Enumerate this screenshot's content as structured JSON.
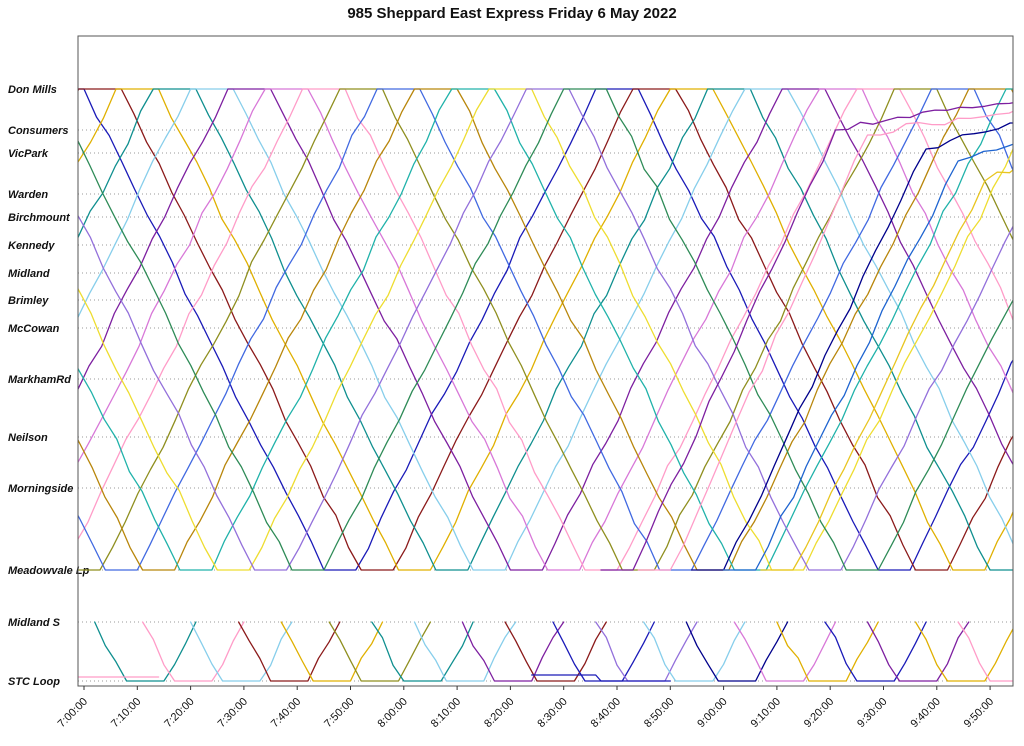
{
  "title": "985 Sheppard East Express Friday 6 May 2022",
  "chart_data": {
    "type": "line",
    "title": "985 Sheppard East Express Friday 6 May 2022",
    "subtitle": "",
    "legend": "none",
    "grid": "dotted-horizontal",
    "x_axis": {
      "unit": "time of day",
      "tick_minutes": [
        0,
        10,
        20,
        30,
        40,
        50,
        60,
        70,
        80,
        90,
        100,
        110,
        120,
        130,
        140,
        150,
        160,
        170
      ],
      "tick_labels": [
        "7:00:00",
        "7:10:00",
        "7:20:00",
        "7:30:00",
        "7:40:00",
        "7:50:00",
        "8:00:00",
        "8:10:00",
        "8:20:00",
        "8:30:00",
        "8:40:00",
        "8:50:00",
        "9:00:00",
        "9:10:00",
        "9:20:00",
        "9:30:00",
        "9:40:00",
        "9:50:00"
      ]
    },
    "stations": [
      {
        "label": "Don Mills",
        "dist": 0
      },
      {
        "label": "Consumers",
        "dist": 41
      },
      {
        "label": "VicPark",
        "dist": 64
      },
      {
        "label": "Warden",
        "dist": 105
      },
      {
        "label": "Birchmount",
        "dist": 128
      },
      {
        "label": "Kennedy",
        "dist": 156
      },
      {
        "label": "Midland",
        "dist": 184
      },
      {
        "label": "Brimley",
        "dist": 211
      },
      {
        "label": "McCowan",
        "dist": 239
      },
      {
        "label": "MarkhamRd",
        "dist": 290
      },
      {
        "label": "Neilson",
        "dist": 348
      },
      {
        "label": "Morningside",
        "dist": 399
      },
      {
        "label": "Meadowvale Lp",
        "dist": 481
      },
      {
        "label": "Midland S",
        "dist": 533
      },
      {
        "label": "STC Loop",
        "dist": 592
      }
    ],
    "trips": [
      {
        "color": "#1a1ab8",
        "points": [
          [
            -104,
            0
          ],
          [
            -59,
            481
          ],
          [
            -53,
            481
          ],
          [
            -8,
            0
          ],
          [
            0,
            0
          ],
          [
            45,
            481
          ],
          [
            51,
            481
          ],
          [
            96,
            0
          ],
          [
            104,
            0
          ],
          [
            149,
            481
          ],
          [
            155,
            481
          ],
          [
            200,
            0
          ]
        ]
      },
      {
        "color": "#8b1a1a",
        "points": [
          [
            -97,
            0
          ],
          [
            -52,
            481
          ],
          [
            -46,
            481
          ],
          [
            -1,
            0
          ],
          [
            7,
            0
          ],
          [
            52,
            481
          ],
          [
            58,
            481
          ],
          [
            103,
            0
          ],
          [
            111,
            0
          ],
          [
            156,
            481
          ],
          [
            162,
            481
          ],
          [
            207,
            0
          ]
        ]
      },
      {
        "color": "#e0b000",
        "points": [
          [
            -90,
            0
          ],
          [
            -45,
            481
          ],
          [
            -39,
            481
          ],
          [
            6,
            0
          ],
          [
            14,
            0
          ],
          [
            59,
            481
          ],
          [
            65,
            481
          ],
          [
            110,
            0
          ],
          [
            118,
            0
          ],
          [
            163,
            481
          ],
          [
            169,
            481
          ],
          [
            214,
            0
          ]
        ]
      },
      {
        "color": "#0f8f8f",
        "points": [
          [
            -83,
            0
          ],
          [
            -38,
            481
          ],
          [
            -32,
            481
          ],
          [
            13,
            0
          ],
          [
            21,
            0
          ],
          [
            66,
            481
          ],
          [
            72,
            481
          ],
          [
            117,
            0
          ],
          [
            125,
            0
          ],
          [
            170,
            481
          ],
          [
            176,
            481
          ],
          [
            221,
            0
          ]
        ]
      },
      {
        "color": "#87ceeb",
        "points": [
          [
            -76,
            0
          ],
          [
            -31,
            481
          ],
          [
            -25,
            481
          ],
          [
            20,
            0
          ],
          [
            28,
            0
          ],
          [
            73,
            481
          ],
          [
            79,
            481
          ],
          [
            124,
            0
          ],
          [
            132,
            0
          ],
          [
            177,
            481
          ]
        ]
      },
      {
        "color": "#7d1fa0",
        "points": [
          [
            -69,
            0
          ],
          [
            -24,
            481
          ],
          [
            -18,
            481
          ],
          [
            27,
            0
          ],
          [
            35,
            0
          ],
          [
            80,
            481
          ],
          [
            86,
            481
          ],
          [
            131,
            0
          ],
          [
            139,
            0
          ],
          [
            184,
            481
          ]
        ]
      },
      {
        "color": "#d878d8",
        "points": [
          [
            -62,
            0
          ],
          [
            -17,
            481
          ],
          [
            -11,
            481
          ],
          [
            34,
            0
          ],
          [
            42,
            0
          ],
          [
            87,
            481
          ],
          [
            93,
            481
          ],
          [
            138,
            0
          ],
          [
            146,
            0
          ],
          [
            191,
            481
          ]
        ]
      },
      {
        "color": "#ff9cc8",
        "points": [
          [
            -55,
            0
          ],
          [
            -10,
            481
          ],
          [
            -4,
            481
          ],
          [
            41,
            0
          ],
          [
            49,
            0
          ],
          [
            94,
            481
          ],
          [
            100,
            481
          ],
          [
            145,
            0
          ],
          [
            153,
            0
          ],
          [
            198,
            481
          ]
        ]
      },
      {
        "color": "#8f8f1f",
        "points": [
          [
            -48,
            0
          ],
          [
            -3,
            481
          ],
          [
            3,
            481
          ],
          [
            48,
            0
          ],
          [
            56,
            0
          ],
          [
            101,
            481
          ],
          [
            107,
            481
          ],
          [
            152,
            0
          ],
          [
            160,
            0
          ],
          [
            205,
            481
          ]
        ]
      },
      {
        "color": "#4169e1",
        "points": [
          [
            -41,
            0
          ],
          [
            4,
            481
          ],
          [
            10,
            481
          ],
          [
            55,
            0
          ],
          [
            63,
            0
          ],
          [
            108,
            481
          ],
          [
            114,
            481
          ],
          [
            159,
            0
          ],
          [
            167,
            0
          ],
          [
            212,
            481
          ]
        ]
      },
      {
        "color": "#b8860b",
        "points": [
          [
            -34,
            0
          ],
          [
            11,
            481
          ],
          [
            17,
            481
          ],
          [
            62,
            0
          ],
          [
            70,
            0
          ],
          [
            115,
            481
          ],
          [
            121,
            481
          ],
          [
            166,
            0
          ],
          [
            174,
            0
          ],
          [
            219,
            481
          ]
        ]
      },
      {
        "color": "#20b2aa",
        "points": [
          [
            -27,
            0
          ],
          [
            18,
            481
          ],
          [
            24,
            481
          ],
          [
            69,
            0
          ],
          [
            77,
            0
          ],
          [
            122,
            481
          ],
          [
            128,
            481
          ],
          [
            173,
            0
          ],
          [
            181,
            0
          ]
        ]
      },
      {
        "color": "#eedd30",
        "points": [
          [
            -20,
            0
          ],
          [
            25,
            481
          ],
          [
            31,
            481
          ],
          [
            76,
            0
          ],
          [
            84,
            0
          ],
          [
            129,
            481
          ],
          [
            135,
            481
          ],
          [
            180,
            0
          ]
        ]
      },
      {
        "color": "#9370db",
        "points": [
          [
            -13,
            0
          ],
          [
            32,
            481
          ],
          [
            38,
            481
          ],
          [
            83,
            0
          ],
          [
            91,
            0
          ],
          [
            136,
            481
          ],
          [
            142,
            481
          ],
          [
            187,
            0
          ]
        ]
      },
      {
        "color": "#2e8b57",
        "points": [
          [
            -6,
            0
          ],
          [
            39,
            481
          ],
          [
            45,
            481
          ],
          [
            90,
            0
          ],
          [
            98,
            0
          ],
          [
            143,
            481
          ],
          [
            149,
            481
          ],
          [
            194,
            0
          ]
        ]
      },
      {
        "color": "#00008b",
        "points": [
          [
            114,
            481
          ],
          [
            120,
            481
          ],
          [
            158,
            60
          ],
          [
            176,
            34
          ]
        ]
      },
      {
        "color": "#1e64d0",
        "points": [
          [
            120,
            481
          ],
          [
            126,
            481
          ],
          [
            164,
            72
          ],
          [
            176,
            52
          ]
        ]
      },
      {
        "color": "#e8c520",
        "points": [
          [
            127,
            481
          ],
          [
            133,
            481
          ],
          [
            169,
            92
          ],
          [
            176,
            74
          ]
        ]
      },
      {
        "color": "#ff9cc8",
        "points": [
          [
            104,
            481
          ],
          [
            110,
            481
          ],
          [
            147,
            46
          ],
          [
            176,
            18
          ]
        ]
      },
      {
        "color": "#7d1fa0",
        "points": [
          [
            97,
            481
          ],
          [
            103,
            481
          ],
          [
            141,
            41
          ],
          [
            176,
            12
          ]
        ]
      },
      {
        "color": "#0f8f8f",
        "points": [
          [
            2,
            533
          ],
          [
            8,
            592
          ],
          [
            15,
            592
          ],
          [
            21,
            533
          ]
        ]
      },
      {
        "color": "#ff9cc8",
        "points": [
          [
            11,
            533
          ],
          [
            17,
            592
          ],
          [
            24,
            592
          ],
          [
            30,
            533
          ]
        ]
      },
      {
        "color": "#87ceeb",
        "points": [
          [
            20,
            533
          ],
          [
            26,
            592
          ],
          [
            33,
            592
          ],
          [
            39,
            533
          ]
        ]
      },
      {
        "color": "#8b1a1a",
        "points": [
          [
            29,
            533
          ],
          [
            35,
            592
          ],
          [
            42,
            592
          ],
          [
            48,
            533
          ]
        ]
      },
      {
        "color": "#e0b000",
        "points": [
          [
            37,
            533
          ],
          [
            43,
            592
          ],
          [
            50,
            592
          ],
          [
            56,
            533
          ]
        ]
      },
      {
        "color": "#8f8f1f",
        "points": [
          [
            46,
            533
          ],
          [
            52,
            592
          ],
          [
            59,
            592
          ],
          [
            65,
            533
          ]
        ]
      },
      {
        "color": "#0f8f8f",
        "points": [
          [
            54,
            533
          ],
          [
            60,
            592
          ],
          [
            67,
            592
          ],
          [
            73,
            533
          ]
        ]
      },
      {
        "color": "#87ceeb",
        "points": [
          [
            62,
            533
          ],
          [
            68,
            592
          ],
          [
            75,
            592
          ],
          [
            81,
            533
          ]
        ]
      },
      {
        "color": "#7d1fa0",
        "points": [
          [
            71,
            533
          ],
          [
            77,
            592
          ],
          [
            84,
            592
          ],
          [
            90,
            533
          ]
        ]
      },
      {
        "color": "#8b1a1a",
        "points": [
          [
            79,
            533
          ],
          [
            85,
            592
          ],
          [
            92,
            592
          ],
          [
            98,
            533
          ]
        ]
      },
      {
        "color": "#1a1ab8",
        "points": [
          [
            88,
            533
          ],
          [
            94,
            592
          ],
          [
            101,
            592
          ],
          [
            107,
            533
          ]
        ]
      },
      {
        "color": "#9370db",
        "points": [
          [
            96,
            533
          ],
          [
            102,
            592
          ],
          [
            109,
            592
          ],
          [
            115,
            533
          ]
        ]
      },
      {
        "color": "#87ceeb",
        "points": [
          [
            105,
            533
          ],
          [
            111,
            592
          ],
          [
            118,
            592
          ],
          [
            124,
            533
          ]
        ]
      },
      {
        "color": "#00008b",
        "points": [
          [
            113,
            533
          ],
          [
            119,
            592
          ],
          [
            126,
            592
          ],
          [
            132,
            533
          ]
        ]
      },
      {
        "color": "#d878d8",
        "points": [
          [
            122,
            533
          ],
          [
            128,
            592
          ],
          [
            135,
            592
          ],
          [
            141,
            533
          ]
        ]
      },
      {
        "color": "#e0b000",
        "points": [
          [
            130,
            533
          ],
          [
            136,
            592
          ],
          [
            143,
            592
          ],
          [
            149,
            533
          ]
        ]
      },
      {
        "color": "#1a1ab8",
        "points": [
          [
            139,
            533
          ],
          [
            145,
            592
          ],
          [
            152,
            592
          ],
          [
            158,
            533
          ]
        ]
      },
      {
        "color": "#7d1fa0",
        "points": [
          [
            147,
            533
          ],
          [
            153,
            592
          ],
          [
            160,
            592
          ],
          [
            166,
            533
          ]
        ]
      },
      {
        "color": "#e0b000",
        "points": [
          [
            156,
            533
          ],
          [
            162,
            592
          ],
          [
            169,
            592
          ],
          [
            175,
            533
          ]
        ]
      },
      {
        "color": "#ff9cc8",
        "points": [
          [
            164,
            533
          ],
          [
            170,
            592
          ],
          [
            177,
            592
          ],
          [
            183,
            533
          ]
        ]
      },
      {
        "color": "#ff9cc8",
        "points": [
          [
            -2,
            588
          ],
          [
            14,
            588
          ]
        ]
      },
      {
        "color": "#1a1ab8",
        "points": [
          [
            84,
            586
          ],
          [
            96,
            586
          ],
          [
            97,
            592
          ],
          [
            110,
            592
          ]
        ]
      }
    ]
  }
}
